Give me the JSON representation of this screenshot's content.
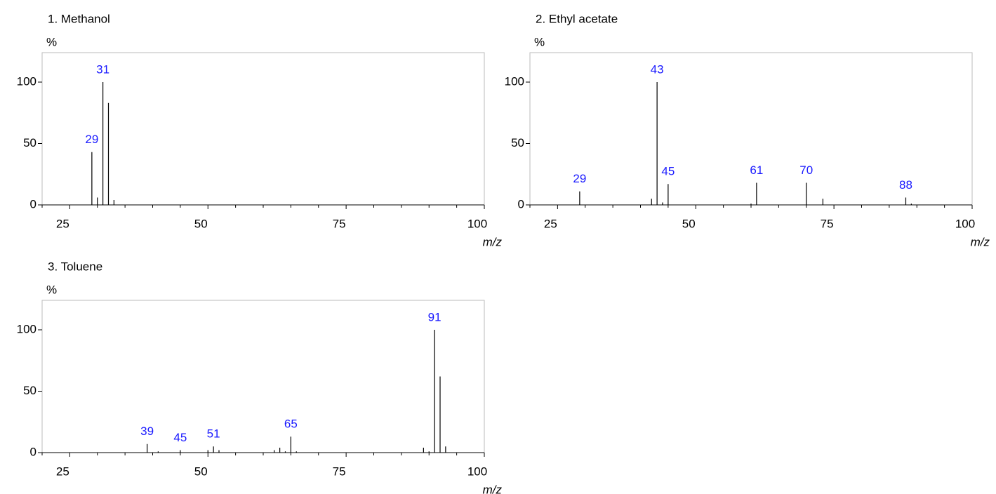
{
  "chart_data": [
    {
      "type": "bar",
      "title": "1. Methanol",
      "ylabel": "%",
      "xlabel": "m/z",
      "x": [
        29,
        30,
        31,
        32,
        33
      ],
      "values": [
        43,
        6,
        100,
        83,
        4
      ],
      "peak_labels": [
        29,
        31
      ],
      "xlim": [
        20,
        100
      ],
      "ylim": [
        0,
        124
      ],
      "xticks": [
        25,
        50,
        75,
        100
      ],
      "yticks": [
        0,
        50,
        100
      ],
      "xminor_ticks": [
        20,
        30,
        35,
        40,
        45,
        55,
        60,
        65,
        70,
        80,
        85,
        90,
        95
      ],
      "color": "#000000",
      "label_color": "#1a1aff"
    },
    {
      "type": "bar",
      "title": "2. Ethyl acetate",
      "ylabel": "%",
      "xlabel": "m/z",
      "x": [
        29,
        42,
        43,
        44,
        45,
        60,
        61,
        70,
        73,
        88,
        89
      ],
      "values": [
        11,
        5,
        100,
        2,
        17,
        1,
        18,
        18,
        5,
        6,
        1
      ],
      "peak_labels": [
        29,
        43,
        45,
        61,
        70,
        88
      ],
      "xlim": [
        20,
        100
      ],
      "ylim": [
        0,
        124
      ],
      "xticks": [
        25,
        50,
        75,
        100
      ],
      "yticks": [
        0,
        50,
        100
      ],
      "xminor_ticks": [
        20,
        30,
        35,
        40,
        45,
        55,
        60,
        65,
        70,
        80,
        85,
        90,
        95
      ],
      "color": "#000000",
      "label_color": "#1a1aff"
    },
    {
      "type": "bar",
      "title": "3. Toluene",
      "ylabel": "%",
      "xlabel": "m/z",
      "x": [
        39,
        41,
        45,
        50,
        51,
        52,
        62,
        63,
        64,
        65,
        66,
        89,
        90,
        91,
        92,
        93
      ],
      "values": [
        7,
        1,
        2,
        2,
        5,
        2,
        2,
        4,
        1,
        13,
        1,
        4,
        1,
        100,
        62,
        5
      ],
      "peak_labels": [
        39,
        45,
        51,
        65,
        91
      ],
      "xlim": [
        20,
        100
      ],
      "ylim": [
        0,
        124
      ],
      "xticks": [
        25,
        50,
        75,
        100
      ],
      "yticks": [
        0,
        50,
        100
      ],
      "xminor_ticks": [
        20,
        30,
        35,
        40,
        45,
        55,
        60,
        65,
        70,
        80,
        85,
        90,
        95
      ],
      "color": "#000000",
      "label_color": "#1a1aff"
    }
  ]
}
